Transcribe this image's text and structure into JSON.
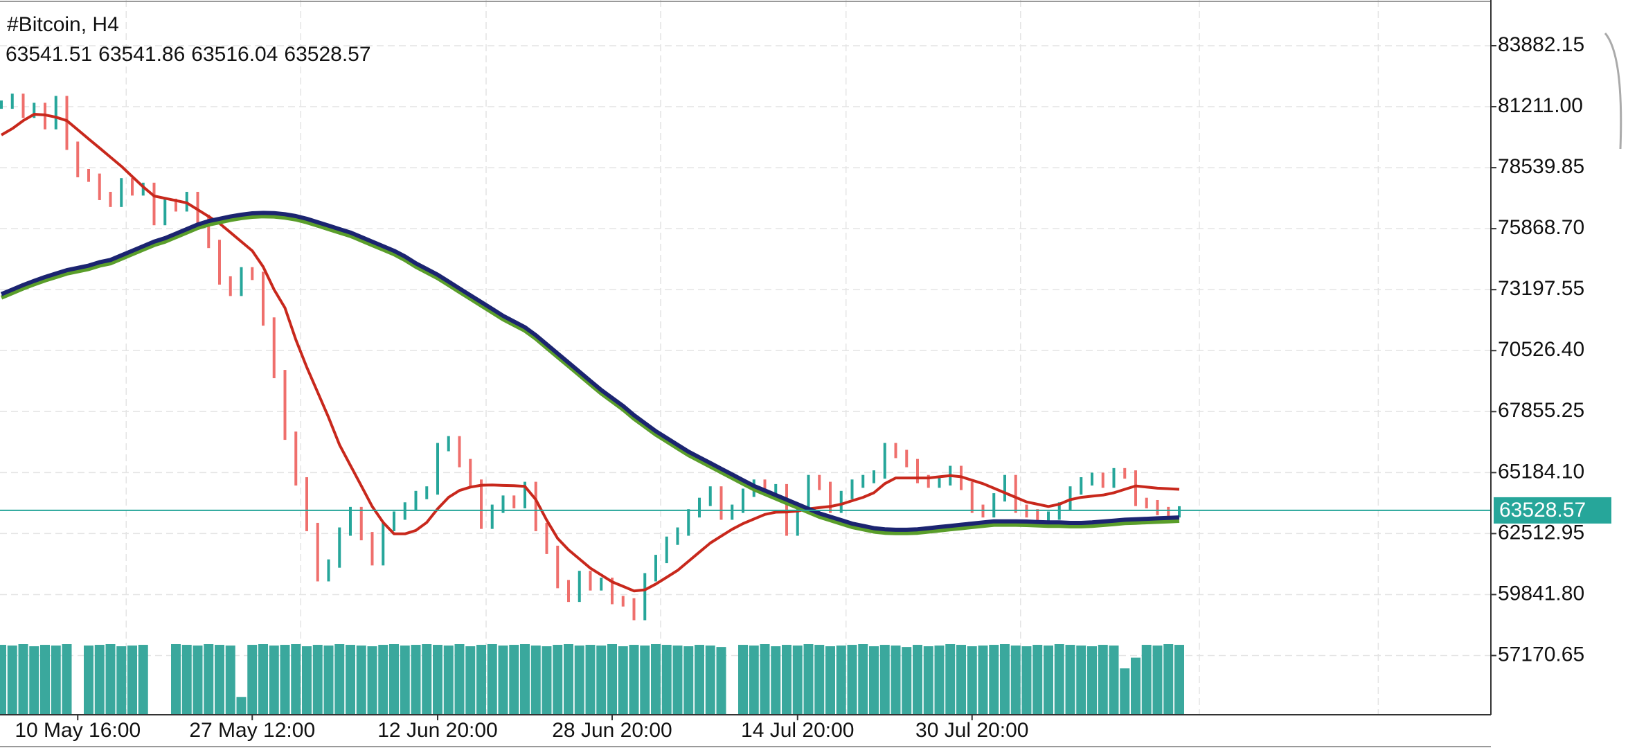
{
  "chart_data": {
    "type": "line",
    "title": "#Bitcoin, H4",
    "ohlc_header": [
      63541.51,
      63541.86,
      63516.04,
      63528.57
    ],
    "last_price": 63528.57,
    "last_price_color": "#26a69a",
    "grid": true,
    "ylim": [
      54577,
      85884
    ],
    "yticks": [
      83882.15,
      {
        "value": 81211.0,
        "label": "81211.00"
      },
      78539.85,
      {
        "value": 75868.7,
        "label": "75868.70"
      },
      73197.55,
      {
        "value": 70526.4,
        "label": "70526.40"
      },
      67855.25,
      {
        "value": 65184.1,
        "label": "65184.10"
      },
      62512.95,
      {
        "value": 59841.8,
        "label": "59841.80"
      },
      57170.65
    ],
    "categories": [
      null,
      null,
      null,
      null,
      null,
      null,
      null,
      "10 May 16:00",
      null,
      null,
      null,
      null,
      null,
      null,
      null,
      null,
      null,
      null,
      null,
      null,
      null,
      null,
      null,
      "27 May 12:00",
      null,
      null,
      null,
      null,
      null,
      null,
      null,
      null,
      null,
      null,
      null,
      null,
      null,
      null,
      null,
      null,
      "12 Jun 20:00",
      null,
      null,
      null,
      null,
      null,
      null,
      null,
      null,
      null,
      null,
      null,
      null,
      null,
      null,
      null,
      "28 Jun 20:00",
      null,
      null,
      null,
      null,
      null,
      null,
      null,
      null,
      null,
      null,
      null,
      null,
      null,
      null,
      null,
      null,
      "14 Jul 20:00",
      null,
      null,
      null,
      null,
      null,
      null,
      null,
      null,
      null,
      null,
      null,
      null,
      null,
      null,
      null,
      "30 Jul 20:00",
      null,
      null,
      null,
      null,
      null,
      null,
      null,
      null,
      null,
      null,
      null,
      null,
      null,
      null,
      null,
      null,
      null,
      null,
      null
    ],
    "series": [
      {
        "style": "bars",
        "up_color": "#26a69a",
        "down_color": "#ef6f6c",
        "values": [
          81300,
          81600,
          80900,
          81200,
          80400,
          81500,
          79500,
          78300,
          78100,
          77300,
          77000,
          77900,
          77500,
          77700,
          76200,
          77000,
          76800,
          77300,
          76300,
          75200,
          73600,
          73100,
          74000,
          73800,
          71800,
          69500,
          66800,
          64800,
          62800,
          60600,
          61200,
          62600,
          63500,
          62400,
          61300,
          62800,
          63300,
          63700,
          64200,
          64400,
          66300,
          66600,
          65600,
          64700,
          62900,
          63600,
          64000,
          63800,
          64600,
          62800,
          61800,
          60300,
          59700,
          60700,
          60200,
          60400,
          59600,
          59500,
          58900,
          60600,
          61400,
          62200,
          62600,
          63400,
          63900,
          64400,
          63300,
          63600,
          64300,
          64700,
          64400,
          64500,
          62600,
          63600,
          64900,
          64600,
          63600,
          64200,
          64700,
          64900,
          65100,
          66300,
          66000,
          65600,
          64900,
          64700,
          64800,
          65300,
          64600,
          63600,
          63400,
          64100,
          64900,
          63600,
          63400,
          63200,
          63300,
          63700,
          64400,
          64800,
          65000,
          64700,
          65200,
          65100,
          63900,
          63800,
          63500,
          63400,
          63528.57
        ]
      },
      {
        "style": "line",
        "color": "#c8281c",
        "values": [
          79970,
          80250,
          80600,
          80880,
          80850,
          80750,
          80600,
          80200,
          79800,
          79400,
          79000,
          78600,
          78150,
          77700,
          77300,
          77200,
          77100,
          77000,
          76700,
          76400,
          76100,
          75700,
          75300,
          74900,
          74200,
          73200,
          72400,
          71000,
          69800,
          68700,
          67600,
          66400,
          65500,
          64600,
          63700,
          63000,
          62500,
          62500,
          62650,
          63000,
          63600,
          64100,
          64400,
          64550,
          64630,
          64640,
          64620,
          64610,
          64580,
          64000,
          63100,
          62300,
          61800,
          61400,
          61000,
          60700,
          60400,
          60200,
          60000,
          60050,
          60300,
          60600,
          60900,
          61300,
          61700,
          62100,
          62400,
          62700,
          62950,
          63150,
          63350,
          63450,
          63460,
          63500,
          63600,
          63650,
          63700,
          63800,
          63950,
          64100,
          64300,
          64700,
          64950,
          64950,
          64950,
          64950,
          65000,
          65050,
          65000,
          64850,
          64700,
          64500,
          64300,
          64100,
          63900,
          63800,
          63700,
          63800,
          64000,
          64100,
          64150,
          64200,
          64300,
          64450,
          64600,
          64550,
          64500,
          64480,
          64450
        ]
      },
      {
        "style": "line",
        "color": "#5a9e2a",
        "values": [
          72850,
          73050,
          73250,
          73430,
          73600,
          73750,
          73900,
          74000,
          74100,
          74250,
          74350,
          74550,
          74750,
          74950,
          75150,
          75300,
          75500,
          75700,
          75900,
          76050,
          76150,
          76250,
          76330,
          76390,
          76410,
          76400,
          76350,
          76270,
          76150,
          76000,
          75850,
          75700,
          75550,
          75350,
          75150,
          74950,
          74750,
          74500,
          74200,
          73950,
          73700,
          73400,
          73100,
          72800,
          72500,
          72200,
          71900,
          71650,
          71400,
          71050,
          70650,
          70250,
          69850,
          69450,
          69050,
          68650,
          68300,
          67950,
          67550,
          67200,
          66850,
          66550,
          66250,
          65950,
          65700,
          65450,
          65200,
          64950,
          64700,
          64450,
          64250,
          64050,
          63850,
          63650,
          63450,
          63250,
          63100,
          62950,
          62800,
          62700,
          62600,
          62550,
          62530,
          62530,
          62550,
          62600,
          62650,
          62700,
          62750,
          62800,
          62850,
          62900,
          62900,
          62900,
          62890,
          62870,
          62850,
          62850,
          62830,
          62830,
          62850,
          62890,
          62930,
          62970,
          62990,
          63010,
          63030,
          63050,
          63070
        ]
      },
      {
        "style": "line",
        "color": "#1b2470",
        "values": [
          73000,
          73200,
          73400,
          73580,
          73750,
          73900,
          74050,
          74150,
          74250,
          74400,
          74500,
          74700,
          74900,
          75100,
          75300,
          75450,
          75650,
          75850,
          76050,
          76200,
          76300,
          76400,
          76480,
          76540,
          76560,
          76550,
          76500,
          76420,
          76300,
          76150,
          76000,
          75850,
          75700,
          75500,
          75300,
          75100,
          74900,
          74650,
          74350,
          74100,
          73850,
          73550,
          73250,
          72950,
          72650,
          72350,
          72050,
          71800,
          71550,
          71200,
          70800,
          70400,
          70000,
          69600,
          69200,
          68800,
          68450,
          68100,
          67700,
          67350,
          67000,
          66700,
          66400,
          66100,
          65850,
          65600,
          65350,
          65100,
          64850,
          64600,
          64400,
          64200,
          64000,
          63800,
          63600,
          63400,
          63250,
          63100,
          62950,
          62850,
          62750,
          62700,
          62680,
          62680,
          62700,
          62750,
          62800,
          62850,
          62900,
          62950,
          63000,
          63050,
          63050,
          63050,
          63040,
          63020,
          63000,
          63000,
          62980,
          62980,
          63000,
          63040,
          63080,
          63120,
          63140,
          63160,
          63180,
          63200,
          63220
        ]
      }
    ],
    "volume": {
      "color": "#3aa89d",
      "values": [
        98,
        97,
        99,
        96,
        98,
        97,
        99,
        0,
        97,
        98,
        99,
        96,
        97,
        98,
        0,
        0,
        99,
        98,
        97,
        99,
        98,
        97,
        25,
        98,
        99,
        97,
        98,
        99,
        96,
        98,
        97,
        99,
        98,
        97,
        96,
        98,
        99,
        97,
        98,
        99,
        98,
        97,
        99,
        96,
        98,
        99,
        97,
        98,
        99,
        97,
        96,
        98,
        99,
        97,
        98,
        97,
        99,
        96,
        98,
        97,
        99,
        98,
        97,
        96,
        98,
        97,
        95,
        0,
        98,
        97,
        99,
        96,
        98,
        97,
        99,
        98,
        96,
        97,
        98,
        99,
        96,
        98,
        97,
        95,
        98,
        96,
        97,
        99,
        98,
        96,
        97,
        98,
        99,
        97,
        96,
        98,
        97,
        99,
        98,
        97,
        96,
        98,
        97,
        65,
        80,
        98,
        97,
        99,
        98
      ]
    }
  }
}
